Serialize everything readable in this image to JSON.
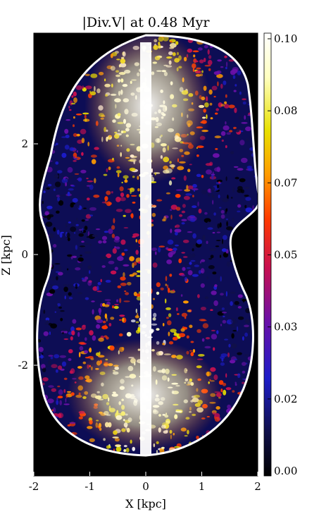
{
  "chart_data": {
    "type": "heatmap",
    "title": "|Div.V|   at  0.48 Myr",
    "xlabel": "X [kpc]",
    "ylabel": "Z [kpc]",
    "xlim": [
      -2,
      2
    ],
    "ylim": [
      -4,
      4
    ],
    "x_ticks": [
      "-2",
      "-1",
      "0",
      "1",
      "2"
    ],
    "y_ticks": [
      "2",
      "0",
      "-2"
    ],
    "colorbar": {
      "ticks": [
        "0.10",
        "0.08",
        "0.07",
        "0.05",
        "0.03",
        "0.02",
        "0.00"
      ],
      "range": [
        0.0,
        0.1
      ],
      "colormap": [
        "#000000",
        "#10104a",
        "#1c1cc8",
        "#6a10a8",
        "#c81050",
        "#ff3a00",
        "#ff9a00",
        "#e8e000",
        "#ffffc0",
        "#ffffff"
      ]
    },
    "image_content": "bipolar turbulent cocoon, white jet axis along x=0, bounded by bright shock shell"
  }
}
